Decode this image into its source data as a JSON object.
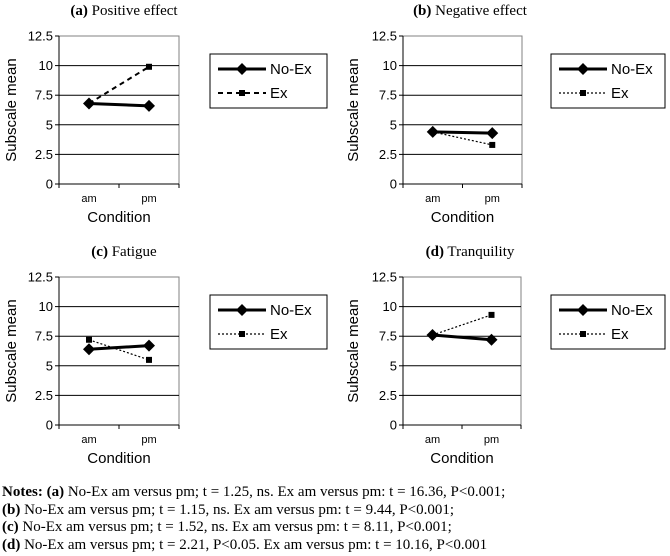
{
  "chart_data": [
    {
      "type": "line",
      "panel": "(a)",
      "title": "Positive effect",
      "categories": [
        "am",
        "pm"
      ],
      "series": [
        {
          "name": "No-Ex",
          "values": [
            6.8,
            6.6
          ],
          "style": "solid-diamond"
        },
        {
          "name": "Ex",
          "values": [
            6.8,
            9.9
          ],
          "style": "dashed-square"
        }
      ],
      "xlabel": "Condition",
      "ylabel": "Subscale mean",
      "ylim": [
        0,
        12.5
      ],
      "yticks": [
        "0",
        "2.5",
        "5",
        "7.5",
        "10",
        "12.5"
      ],
      "legend_position": "right"
    },
    {
      "type": "line",
      "panel": "(b)",
      "title": "Negative effect",
      "categories": [
        "am",
        "pm"
      ],
      "series": [
        {
          "name": "No-Ex",
          "values": [
            4.4,
            4.3
          ],
          "style": "solid-diamond"
        },
        {
          "name": "Ex",
          "values": [
            4.4,
            3.3
          ],
          "style": "dotted-square"
        }
      ],
      "xlabel": "Condition",
      "ylabel": "Subscale mean",
      "ylim": [
        0,
        12.5
      ],
      "yticks": [
        "0",
        "2.5",
        "5",
        "7.5",
        "10",
        "12.5"
      ],
      "legend_position": "right"
    },
    {
      "type": "line",
      "panel": "(c)",
      "title": "Fatigue",
      "categories": [
        "am",
        "pm"
      ],
      "series": [
        {
          "name": "No-Ex",
          "values": [
            6.4,
            6.7
          ],
          "style": "solid-diamond"
        },
        {
          "name": "Ex",
          "values": [
            7.2,
            5.5
          ],
          "style": "dotted-square"
        }
      ],
      "xlabel": "Condition",
      "ylabel": "Subscale mean",
      "ylim": [
        0,
        12.5
      ],
      "yticks": [
        "0",
        "2.5",
        "5",
        "7.5",
        "10",
        "12.5"
      ],
      "legend_position": "right"
    },
    {
      "type": "line",
      "panel": "(d)",
      "title": "Tranquility",
      "categories": [
        "am",
        "pm"
      ],
      "series": [
        {
          "name": "No-Ex",
          "values": [
            7.6,
            7.2
          ],
          "style": "solid-diamond"
        },
        {
          "name": "Ex",
          "values": [
            7.6,
            9.3
          ],
          "style": "dotted-square"
        }
      ],
      "xlabel": "Condition",
      "ylabel": "Subscale mean",
      "ylim": [
        0,
        12.5
      ],
      "yticks": [
        "0",
        "2.5",
        "5",
        "7.5",
        "10",
        "12.5"
      ],
      "legend_position": "right"
    }
  ],
  "notes": {
    "label": "Notes",
    "lines": [
      {
        "tag": "(a)",
        "text": " No-Ex am versus pm; t = 1.25, ns. Ex am versus pm: t = 16.36, P<0.001;"
      },
      {
        "tag": "(b)",
        "text": " No-Ex am versus pm; t = 1.15, ns. Ex am versus pm: t = 9.44, P<0.001;"
      },
      {
        "tag": "(c)",
        "text": " No-Ex am versus pm; t = 1.52, ns. Ex am versus pm: t = 8.11, P<0.001;"
      },
      {
        "tag": "(d)",
        "text": " No-Ex am versus pm; t = 2.21, P<0.05. Ex am versus pm: t = 10.16, P<0.001"
      }
    ]
  }
}
